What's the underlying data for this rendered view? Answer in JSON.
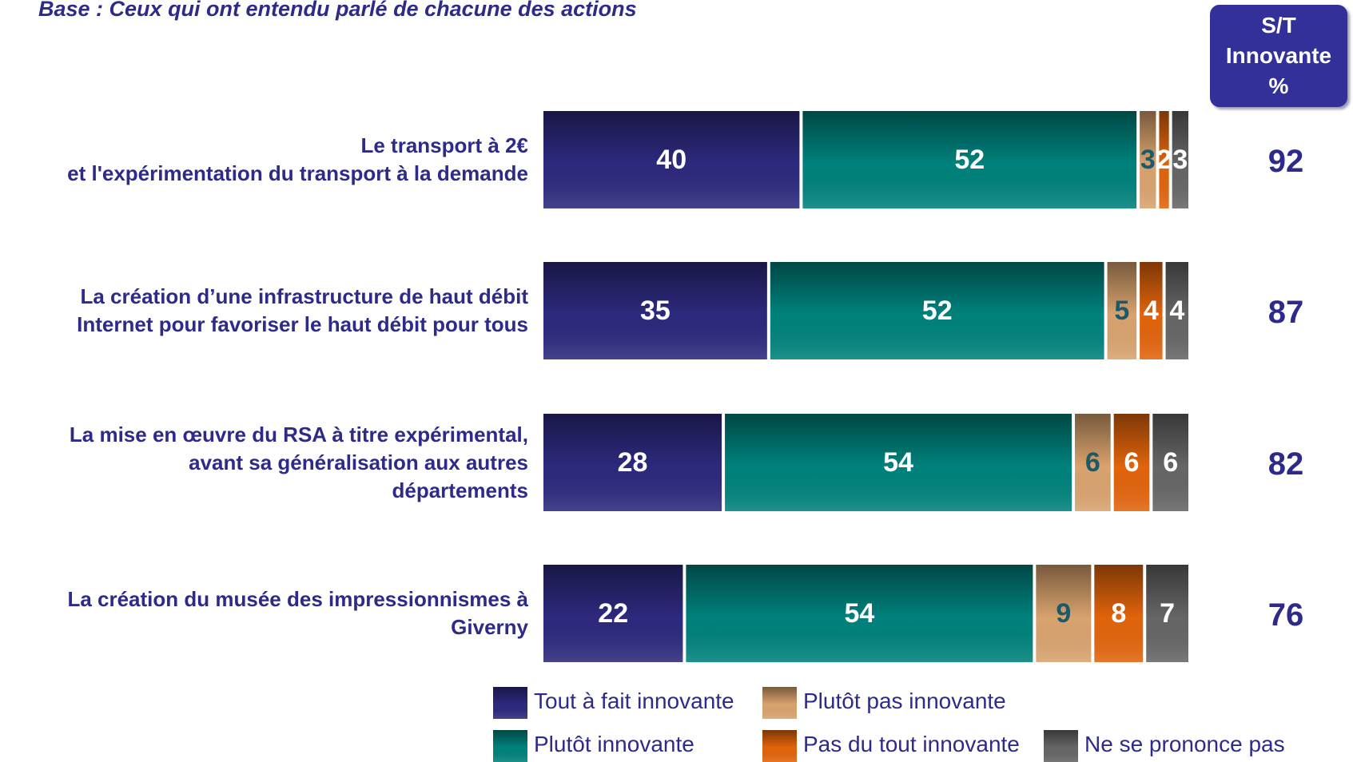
{
  "chart_data": {
    "type": "stacked_barh",
    "subtitle": "Base : Ceux qui ont entendu parlé de chacune des actions",
    "categories": [
      "Le transport à 2€\net l'expérimentation du transport à la demande",
      "La création d’une infrastructure de haut débit\nInternet pour favoriser le haut débit pour tous",
      "La mise en œuvre du RSA à titre expérimental,\navant sa généralisation aux autres\ndépartements",
      "La création du musée des impressionnismes à\nGiverny"
    ],
    "xlim": [
      0,
      100
    ],
    "series": [
      {
        "name": "Tout à fait innovante",
        "color": "#2d2a7e",
        "values": [
          40,
          35,
          28,
          22
        ]
      },
      {
        "name": "Plutôt innovante",
        "color": "#00827c",
        "values": [
          52,
          52,
          54,
          54
        ]
      },
      {
        "name": "Plutôt pas innovante",
        "color": "#d9a36e",
        "values": [
          3,
          5,
          6,
          9
        ]
      },
      {
        "name": "Pas du tout innovante",
        "color": "#e2640c",
        "values": [
          2,
          4,
          6,
          8
        ]
      },
      {
        "name": "Ne se prononce pas",
        "color": "#666666",
        "values": [
          3,
          4,
          6,
          7
        ]
      }
    ],
    "total_column": {
      "header": "S/T\nInnovante\n%",
      "values": [
        92,
        87,
        82,
        76
      ]
    }
  }
}
